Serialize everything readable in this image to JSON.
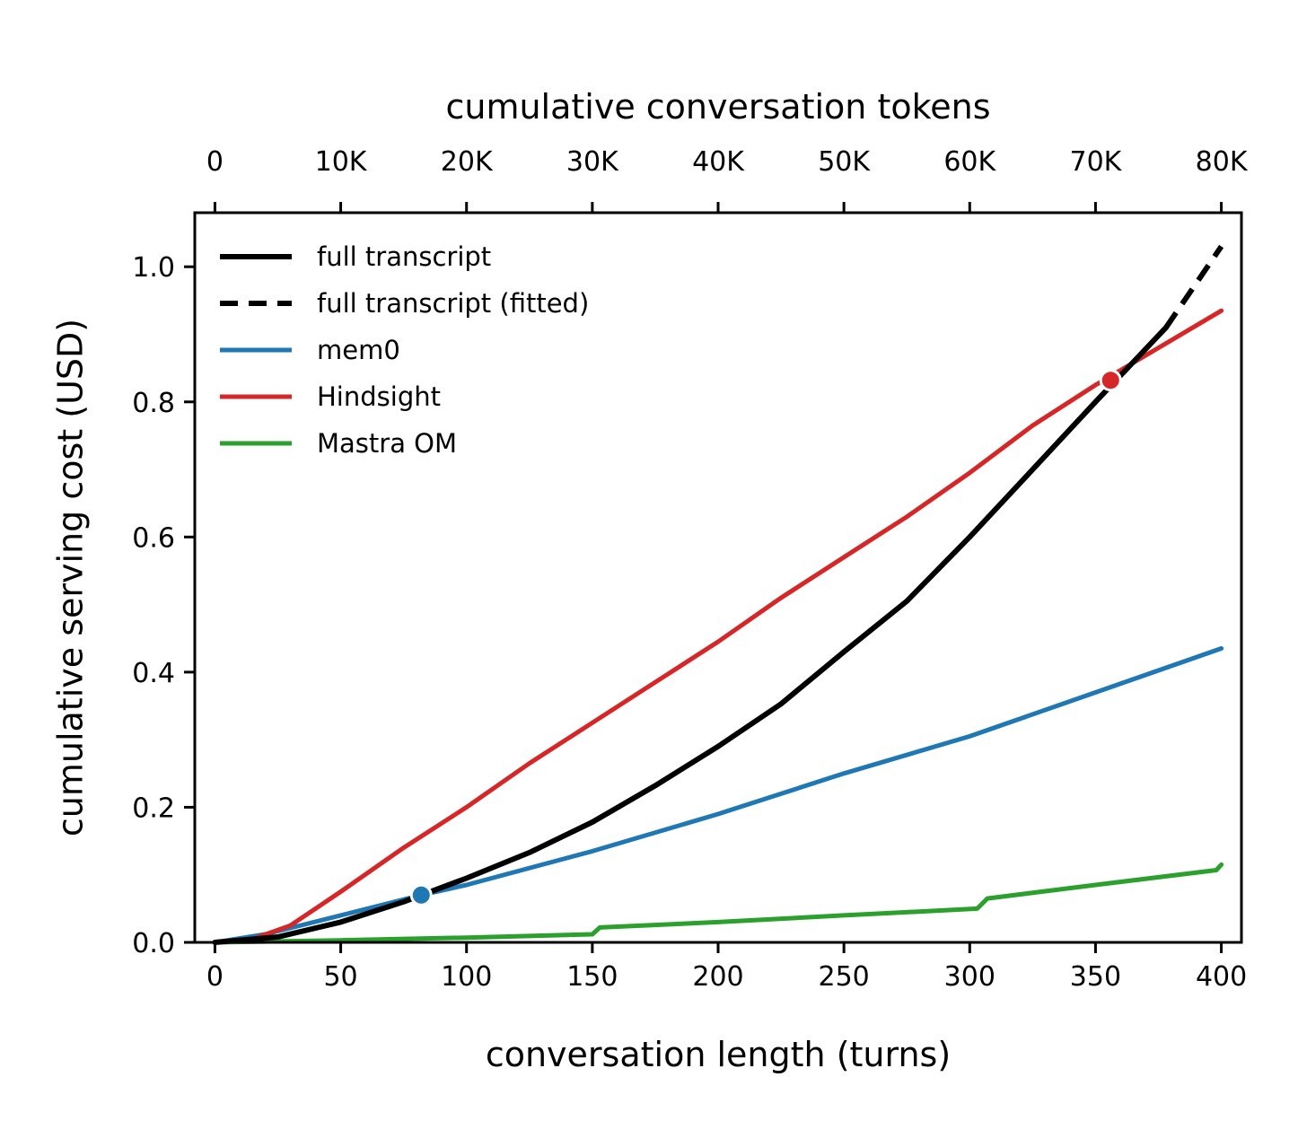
{
  "chart_data": {
    "type": "line",
    "xlabel": "conversation length (turns)",
    "ylabel": "cumulative serving cost (USD)",
    "x2label": "cumulative conversation tokens",
    "xlim": [
      -8,
      408
    ],
    "ylim": [
      0,
      1.08
    ],
    "xticks": [
      0,
      50,
      100,
      150,
      200,
      250,
      300,
      350,
      400
    ],
    "yticks": [
      0.0,
      0.2,
      0.4,
      0.6,
      0.8,
      1.0
    ],
    "ytick_labels": [
      "0.0",
      "0.2",
      "0.4",
      "0.6",
      "0.8",
      "1.0"
    ],
    "x2ticks": [
      0,
      50,
      100,
      150,
      200,
      250,
      300,
      350,
      400
    ],
    "x2tick_labels": [
      "0",
      "10K",
      "20K",
      "30K",
      "40K",
      "50K",
      "60K",
      "70K",
      "80K"
    ],
    "grid": false,
    "legend_position": "upper-left",
    "series": [
      {
        "name": "full transcript",
        "color": "#000000",
        "style": "solid",
        "x": [
          0,
          25,
          50,
          75,
          100,
          125,
          150,
          175,
          200,
          225,
          250,
          275,
          300,
          325,
          350,
          378
        ],
        "y": [
          0.0,
          0.008,
          0.03,
          0.06,
          0.095,
          0.133,
          0.178,
          0.232,
          0.29,
          0.353,
          0.43,
          0.505,
          0.6,
          0.7,
          0.8,
          0.91
        ]
      },
      {
        "name": "full transcript (fitted)",
        "color": "#000000",
        "style": "dashed",
        "x": [
          378,
          400
        ],
        "y": [
          0.91,
          1.03
        ]
      },
      {
        "name": "mem0",
        "color": "#1f77b4",
        "style": "solid",
        "x": [
          0,
          20,
          50,
          82,
          100,
          150,
          200,
          250,
          300,
          350,
          400
        ],
        "y": [
          0.0,
          0.012,
          0.04,
          0.07,
          0.085,
          0.135,
          0.19,
          0.25,
          0.305,
          0.37,
          0.435
        ]
      },
      {
        "name": "Hindsight",
        "color": "#d62728",
        "style": "solid",
        "x": [
          0,
          15,
          30,
          40,
          50,
          75,
          100,
          125,
          150,
          175,
          200,
          225,
          250,
          275,
          300,
          325,
          350,
          375,
          400
        ],
        "y": [
          0.0,
          0.005,
          0.025,
          0.05,
          0.075,
          0.14,
          0.2,
          0.265,
          0.325,
          0.385,
          0.445,
          0.51,
          0.57,
          0.63,
          0.695,
          0.765,
          0.825,
          0.88,
          0.935
        ]
      },
      {
        "name": "Mastra OM",
        "color": "#2ca02c",
        "style": "solid",
        "x": [
          0,
          50,
          100,
          150,
          153,
          200,
          250,
          303,
          307,
          350,
          398,
          400
        ],
        "y": [
          0.0,
          0.003,
          0.007,
          0.012,
          0.022,
          0.03,
          0.04,
          0.05,
          0.065,
          0.085,
          0.107,
          0.115
        ]
      }
    ],
    "markers": [
      {
        "series": "mem0",
        "x": 82,
        "y": 0.07,
        "color": "#1f77b4"
      },
      {
        "series": "Hindsight",
        "x": 356,
        "y": 0.832,
        "color": "#d62728"
      }
    ]
  }
}
